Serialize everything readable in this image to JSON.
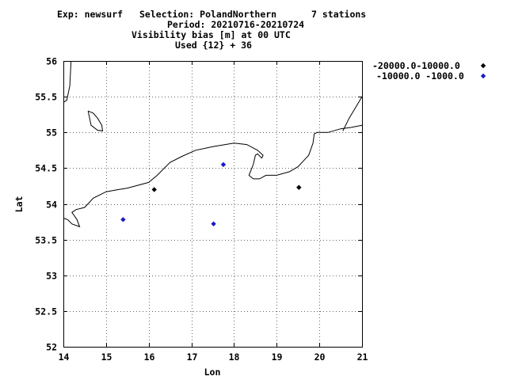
{
  "header": {
    "line1_left": "Exp: newsurf",
    "line1_selection": "Selection: PolandNorthern",
    "line1_count": "7 stations",
    "line2": "Period: 20210716-20210724",
    "line3": "Visibility bias [m] at  00 UTC",
    "line4": "Used {12} + 36"
  },
  "chart_data": {
    "type": "scatter",
    "xlabel": "Lon",
    "ylabel": "Lat",
    "xlim": [
      14,
      21
    ],
    "ylim": [
      52,
      56
    ],
    "x_ticks": [
      "14",
      "15",
      "16",
      "17",
      "18",
      "19",
      "20",
      "21"
    ],
    "y_ticks": [
      "52",
      "52.5",
      "53",
      "53.5",
      "54",
      "54.5",
      "55",
      "55.5",
      "56"
    ],
    "grid": true,
    "legend_position": "right",
    "series": [
      {
        "name": "-20000.0-10000.0",
        "color": "#000000",
        "marker": "diamond",
        "points": [
          [
            16.13,
            54.2
          ],
          [
            19.52,
            54.23
          ]
        ]
      },
      {
        "name": "-10000.0 -1000.0",
        "color": "#1a1acc",
        "marker": "diamond",
        "points": [
          [
            15.4,
            53.78
          ],
          [
            17.52,
            53.72
          ],
          [
            17.75,
            54.55
          ]
        ]
      }
    ],
    "coastlines": [
      [
        [
          14.0,
          55.42
        ],
        [
          14.08,
          55.45
        ],
        [
          14.15,
          55.65
        ],
        [
          14.18,
          56.0
        ]
      ],
      [
        [
          14.58,
          55.3
        ],
        [
          14.7,
          55.27
        ],
        [
          14.8,
          55.2
        ],
        [
          14.9,
          55.1
        ],
        [
          14.92,
          55.02
        ],
        [
          14.8,
          55.03
        ],
        [
          14.65,
          55.1
        ],
        [
          14.58,
          55.3
        ]
      ],
      [
        [
          14.0,
          53.8
        ],
        [
          14.1,
          53.78
        ],
        [
          14.2,
          53.72
        ],
        [
          14.38,
          53.68
        ],
        [
          14.32,
          53.78
        ],
        [
          14.2,
          53.88
        ],
        [
          14.3,
          53.92
        ],
        [
          14.5,
          53.95
        ],
        [
          14.7,
          54.08
        ],
        [
          15.0,
          54.17
        ],
        [
          15.3,
          54.2
        ],
        [
          15.5,
          54.22
        ],
        [
          16.0,
          54.3
        ],
        [
          16.2,
          54.4
        ],
        [
          16.5,
          54.58
        ],
        [
          16.8,
          54.67
        ],
        [
          17.1,
          54.75
        ],
        [
          17.5,
          54.8
        ],
        [
          18.0,
          54.85
        ],
        [
          18.3,
          54.83
        ],
        [
          18.55,
          54.75
        ],
        [
          18.68,
          54.68
        ],
        [
          18.65,
          54.64
        ],
        [
          18.55,
          54.7
        ],
        [
          18.5,
          54.68
        ],
        [
          18.45,
          54.55
        ],
        [
          18.35,
          54.4
        ],
        [
          18.45,
          54.35
        ],
        [
          18.6,
          54.35
        ],
        [
          18.75,
          54.4
        ],
        [
          19.0,
          54.4
        ],
        [
          19.3,
          54.45
        ],
        [
          19.5,
          54.52
        ],
        [
          19.75,
          54.68
        ],
        [
          19.85,
          54.85
        ],
        [
          19.88,
          54.98
        ],
        [
          19.95,
          55.0
        ],
        [
          20.2,
          55.0
        ],
        [
          20.5,
          55.05
        ],
        [
          20.75,
          55.07
        ],
        [
          21.0,
          55.1
        ]
      ],
      [
        [
          20.55,
          55.02
        ],
        [
          20.7,
          55.2
        ],
        [
          20.85,
          55.35
        ],
        [
          21.0,
          55.5
        ]
      ]
    ]
  }
}
